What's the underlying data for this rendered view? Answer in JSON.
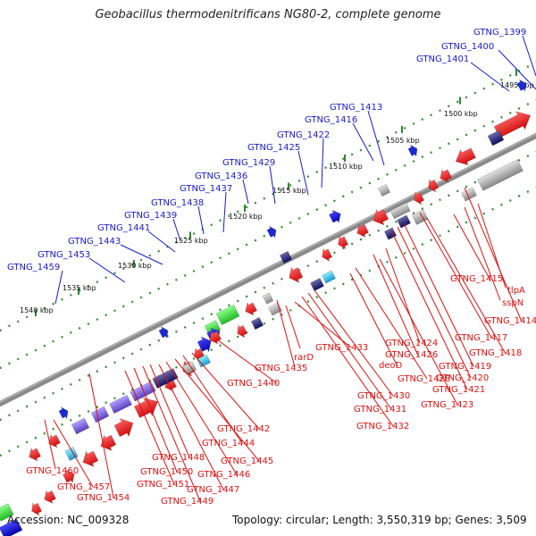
{
  "title": "Geobacillus thermodenitrificans NG80-2, complete genome",
  "footer": {
    "accession": "Accession: NC_009328",
    "summary": "Topology: circular; Length: 3,550,319 bp; Genes: 3,509"
  },
  "ticks": [
    "1495 kbp",
    "1500 kbp",
    "1505 kbp",
    "1510 kbp",
    "1515 kbp",
    "1520 kbp",
    "1525 kbp",
    "1530 kbp",
    "1535 kbp",
    "1540 kbp"
  ],
  "plus_labels": [
    "GTNG_1399",
    "GTNG_1400",
    "GTNG_1401",
    "GTNG_1413",
    "GTNG_1416",
    "GTNG_1422",
    "GTNG_1425",
    "GTNG_1429",
    "GTNG_1436",
    "GTNG_1437",
    "GTNG_1438",
    "GTNG_1439",
    "GTNG_1441",
    "GTNG_1443",
    "GTNG_1453",
    "GTNG_1459"
  ],
  "minus_labels": [
    "tlpA",
    "sspN",
    "GTNG_1415",
    "GTNG_1414",
    "GTNG_1417",
    "GTNG_1418",
    "GTNG_1419",
    "GTNG_1420",
    "GTNG_1421",
    "GTNG_1424",
    "GTNG_1426",
    "GTNG_1423",
    "GTNG_1428",
    "deoD",
    "GTNG_1430",
    "GTNG_1431",
    "GTNG_1432",
    "GTNG_1433",
    "rarD",
    "GTNG_1435",
    "GTNG_1440",
    "GTNG_1442",
    "GTNG_1444",
    "GTNG_1445",
    "GTNG_1446",
    "GTNG_1447",
    "GTNG_1448",
    "GTNG_1449",
    "GTNG_1450",
    "GTNG_1451",
    "GTNG_1454",
    "GTNG_1457",
    "GTNG_1460"
  ],
  "colors": {
    "plus_label": "#1a1acc",
    "minus_label": "#dd1111",
    "backbone": "#777777",
    "tick": "#2a8a2a"
  }
}
